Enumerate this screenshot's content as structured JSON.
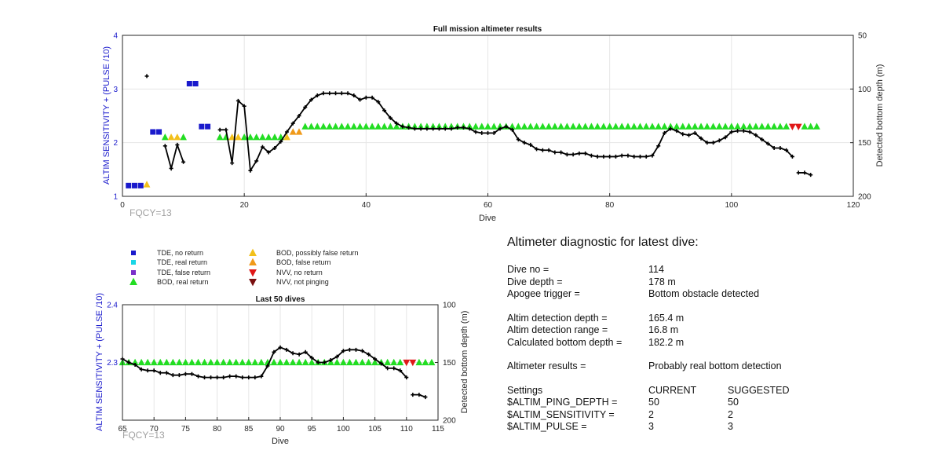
{
  "chart_data": [
    {
      "type": "scatter",
      "title": "Full mission altimeter results",
      "xlabel": "Dive",
      "ylabel": "ALTIM SENSITIVITY + (PULSE /10)",
      "ylabel_right": "Detected bottom depth (m)",
      "xlim": [
        0,
        120
      ],
      "ylim": [
        1,
        4
      ],
      "ylim_right": [
        200,
        50
      ],
      "xticks": [
        "0",
        "20",
        "40",
        "60",
        "80",
        "100",
        "120"
      ],
      "yticks": [
        "1",
        "2",
        "3",
        "4"
      ],
      "yticks_right": [
        "200",
        "150",
        "100",
        "50"
      ],
      "annotation": "FQCY=13",
      "tde_no_return": [
        [
          1,
          1.2
        ],
        [
          2,
          1.2
        ],
        [
          3,
          1.2
        ],
        [
          5,
          2.2
        ],
        [
          6,
          2.2
        ],
        [
          11,
          3.1
        ],
        [
          12,
          3.1
        ],
        [
          13,
          2.3
        ],
        [
          14,
          2.3
        ]
      ],
      "bod_possibly_false": [
        [
          4,
          1.22
        ],
        [
          8,
          2.1
        ],
        [
          9,
          2.1
        ],
        [
          18,
          2.1
        ],
        [
          19,
          2.1
        ],
        [
          27,
          2.1
        ]
      ],
      "bod_false": [
        [
          28,
          2.2
        ],
        [
          29,
          2.2
        ]
      ],
      "bod_real": [
        [
          7,
          2.1
        ],
        [
          10,
          2.1
        ],
        [
          16,
          2.1
        ],
        [
          17,
          2.1
        ],
        [
          20,
          2.1
        ],
        [
          21,
          2.1
        ],
        [
          22,
          2.1
        ],
        [
          23,
          2.1
        ],
        [
          24,
          2.1
        ],
        [
          25,
          2.1
        ],
        [
          26,
          2.1
        ],
        [
          30,
          2.3
        ],
        [
          31,
          2.3
        ],
        [
          32,
          2.3
        ],
        [
          33,
          2.3
        ],
        [
          34,
          2.3
        ],
        [
          35,
          2.3
        ],
        [
          36,
          2.3
        ],
        [
          37,
          2.3
        ],
        [
          38,
          2.3
        ],
        [
          39,
          2.3
        ],
        [
          40,
          2.3
        ],
        [
          41,
          2.3
        ],
        [
          42,
          2.3
        ],
        [
          43,
          2.3
        ],
        [
          44,
          2.3
        ],
        [
          45,
          2.3
        ],
        [
          46,
          2.3
        ],
        [
          47,
          2.3
        ],
        [
          48,
          2.3
        ],
        [
          49,
          2.3
        ],
        [
          50,
          2.3
        ],
        [
          51,
          2.3
        ],
        [
          52,
          2.3
        ],
        [
          53,
          2.3
        ],
        [
          54,
          2.3
        ],
        [
          55,
          2.3
        ],
        [
          56,
          2.3
        ],
        [
          57,
          2.3
        ],
        [
          58,
          2.3
        ],
        [
          59,
          2.3
        ],
        [
          60,
          2.3
        ],
        [
          61,
          2.3
        ],
        [
          62,
          2.3
        ],
        [
          63,
          2.3
        ],
        [
          64,
          2.3
        ],
        [
          65,
          2.3
        ],
        [
          66,
          2.3
        ],
        [
          67,
          2.3
        ],
        [
          68,
          2.3
        ],
        [
          69,
          2.3
        ],
        [
          70,
          2.3
        ],
        [
          71,
          2.3
        ],
        [
          72,
          2.3
        ],
        [
          73,
          2.3
        ],
        [
          74,
          2.3
        ],
        [
          75,
          2.3
        ],
        [
          76,
          2.3
        ],
        [
          77,
          2.3
        ],
        [
          78,
          2.3
        ],
        [
          79,
          2.3
        ],
        [
          80,
          2.3
        ],
        [
          81,
          2.3
        ],
        [
          82,
          2.3
        ],
        [
          83,
          2.3
        ],
        [
          84,
          2.3
        ],
        [
          85,
          2.3
        ],
        [
          86,
          2.3
        ],
        [
          87,
          2.3
        ],
        [
          88,
          2.3
        ],
        [
          89,
          2.3
        ],
        [
          90,
          2.3
        ],
        [
          91,
          2.3
        ],
        [
          92,
          2.3
        ],
        [
          93,
          2.3
        ],
        [
          94,
          2.3
        ],
        [
          95,
          2.3
        ],
        [
          96,
          2.3
        ],
        [
          97,
          2.3
        ],
        [
          98,
          2.3
        ],
        [
          99,
          2.3
        ],
        [
          100,
          2.3
        ],
        [
          101,
          2.3
        ],
        [
          102,
          2.3
        ],
        [
          103,
          2.3
        ],
        [
          104,
          2.3
        ],
        [
          105,
          2.3
        ],
        [
          106,
          2.3
        ],
        [
          107,
          2.3
        ],
        [
          108,
          2.3
        ],
        [
          109,
          2.3
        ],
        [
          112,
          2.3
        ],
        [
          113,
          2.3
        ],
        [
          114,
          2.3
        ]
      ],
      "nvv_no_return": [
        [
          110,
          2.3
        ],
        [
          111,
          2.3
        ]
      ],
      "depth_segments": [
        [
          [
            4,
            88
          ]
        ],
        [
          [
            7,
            153
          ],
          [
            8,
            174
          ],
          [
            9,
            152
          ],
          [
            10,
            168
          ]
        ],
        [
          [
            16,
            138
          ],
          [
            17,
            138
          ],
          [
            18,
            169
          ],
          [
            19,
            111
          ],
          [
            20,
            116
          ],
          [
            21,
            176
          ],
          [
            22,
            167
          ],
          [
            23,
            154
          ],
          [
            24,
            159
          ],
          [
            25,
            155
          ],
          [
            26,
            149
          ],
          [
            27,
            140
          ],
          [
            28,
            132
          ],
          [
            29,
            125
          ],
          [
            30,
            117
          ],
          [
            31,
            110
          ],
          [
            32,
            106
          ],
          [
            33,
            104
          ],
          [
            34,
            104
          ],
          [
            35,
            104
          ],
          [
            36,
            104
          ],
          [
            37,
            104
          ],
          [
            38,
            106
          ],
          [
            39,
            110
          ],
          [
            40,
            108
          ],
          [
            41,
            108
          ],
          [
            42,
            112
          ],
          [
            43,
            120
          ],
          [
            44,
            127
          ],
          [
            45,
            132
          ],
          [
            46,
            135
          ],
          [
            47,
            136
          ],
          [
            48,
            137
          ],
          [
            49,
            137
          ],
          [
            50,
            137
          ],
          [
            51,
            137
          ],
          [
            52,
            137
          ],
          [
            53,
            137
          ],
          [
            54,
            137
          ],
          [
            55,
            136
          ],
          [
            56,
            136
          ],
          [
            57,
            137
          ],
          [
            58,
            140
          ],
          [
            59,
            141
          ],
          [
            60,
            141
          ],
          [
            61,
            141
          ],
          [
            62,
            137
          ],
          [
            63,
            135
          ],
          [
            64,
            138
          ],
          [
            65,
            147
          ],
          [
            66,
            150
          ],
          [
            67,
            152
          ],
          [
            68,
            156
          ],
          [
            69,
            157
          ],
          [
            70,
            157
          ],
          [
            71,
            159
          ],
          [
            72,
            159
          ],
          [
            73,
            161
          ],
          [
            74,
            161
          ],
          [
            75,
            160
          ],
          [
            76,
            160
          ],
          [
            77,
            162
          ],
          [
            78,
            163
          ],
          [
            79,
            163
          ],
          [
            80,
            163
          ],
          [
            81,
            163
          ],
          [
            82,
            162
          ],
          [
            83,
            162
          ],
          [
            84,
            163
          ],
          [
            85,
            163
          ],
          [
            86,
            163
          ],
          [
            87,
            162
          ],
          [
            88,
            153
          ],
          [
            89,
            141
          ],
          [
            90,
            137
          ],
          [
            91,
            139
          ],
          [
            92,
            142
          ],
          [
            93,
            143
          ],
          [
            94,
            141
          ],
          [
            95,
            146
          ],
          [
            96,
            150
          ],
          [
            97,
            150
          ],
          [
            98,
            148
          ],
          [
            99,
            145
          ],
          [
            100,
            140
          ],
          [
            101,
            139
          ],
          [
            102,
            139
          ],
          [
            103,
            140
          ],
          [
            104,
            143
          ],
          [
            105,
            147
          ],
          [
            106,
            151
          ],
          [
            107,
            155
          ],
          [
            108,
            155
          ],
          [
            109,
            157
          ],
          [
            110,
            163
          ]
        ],
        [
          [
            111,
            178
          ],
          [
            112,
            178
          ],
          [
            113,
            180
          ]
        ]
      ]
    },
    {
      "type": "scatter",
      "title": "Last 50 dives",
      "xlabel": "Dive",
      "ylabel": "ALTIM SENSITIVITY + (PULSE /10)",
      "ylabel_right": "Detected bottom depth (m)",
      "xlim": [
        65,
        115
      ],
      "ylim": [
        2.2,
        2.4
      ],
      "ylim_right": [
        200,
        100
      ],
      "xticks": [
        "65",
        "70",
        "75",
        "80",
        "85",
        "90",
        "95",
        "100",
        "105",
        "110",
        "115"
      ],
      "yticks": [
        "2.3",
        "2.4"
      ],
      "yticks_right": [
        "200",
        "150",
        "100"
      ],
      "annotation": "FQCY=13"
    }
  ],
  "legend": [
    {
      "label": "TDE, no return",
      "color": "#1a1acc",
      "marker": "square"
    },
    {
      "label": "TDE, real return",
      "color": "#19d6e6",
      "marker": "square"
    },
    {
      "label": "TDE, false return",
      "color": "#7a2fc9",
      "marker": "square"
    },
    {
      "label": "BOD, real return",
      "color": "#22dd22",
      "marker": "triangle-up"
    },
    {
      "label": "BOD, possibly false return",
      "color": "#f2c01a",
      "marker": "triangle-up"
    },
    {
      "label": "BOD, false return",
      "color": "#f09a1a",
      "marker": "triangle-up"
    },
    {
      "label": "NVV, no return",
      "color": "#e01818",
      "marker": "triangle-down"
    },
    {
      "label": "NVV, not pinging",
      "color": "#7a1010",
      "marker": "triangle-down"
    }
  ],
  "diagnostic": {
    "heading": "Altimeter diagnostic for latest dive:",
    "dive_no_label": "Dive no =",
    "dive_no": "114",
    "dive_depth_label": "Dive depth =",
    "dive_depth": "178 m",
    "apogee_label": "Apogee trigger =",
    "apogee": "Bottom obstacle detected",
    "det_depth_label": "Altim detection depth =",
    "det_depth": "165.4 m",
    "det_range_label": "Altim detection range =",
    "det_range": "16.8 m",
    "calc_depth_label": "Calculated bottom depth =",
    "calc_depth": "182.2 m",
    "results_label": "Altimeter results =",
    "results": "Probably real bottom detection",
    "settings_label": "Settings",
    "current_label": "CURRENT",
    "suggested_label": "SUGGESTED",
    "ping_label": "$ALTIM_PING_DEPTH =",
    "ping_current": "50",
    "ping_suggested": "50",
    "sens_label": "$ALTIM_SENSITIVITY =",
    "sens_current": "2",
    "sens_suggested": "2",
    "pulse_label": "$ALTIM_PULSE =",
    "pulse_current": "3",
    "pulse_suggested": "3"
  }
}
